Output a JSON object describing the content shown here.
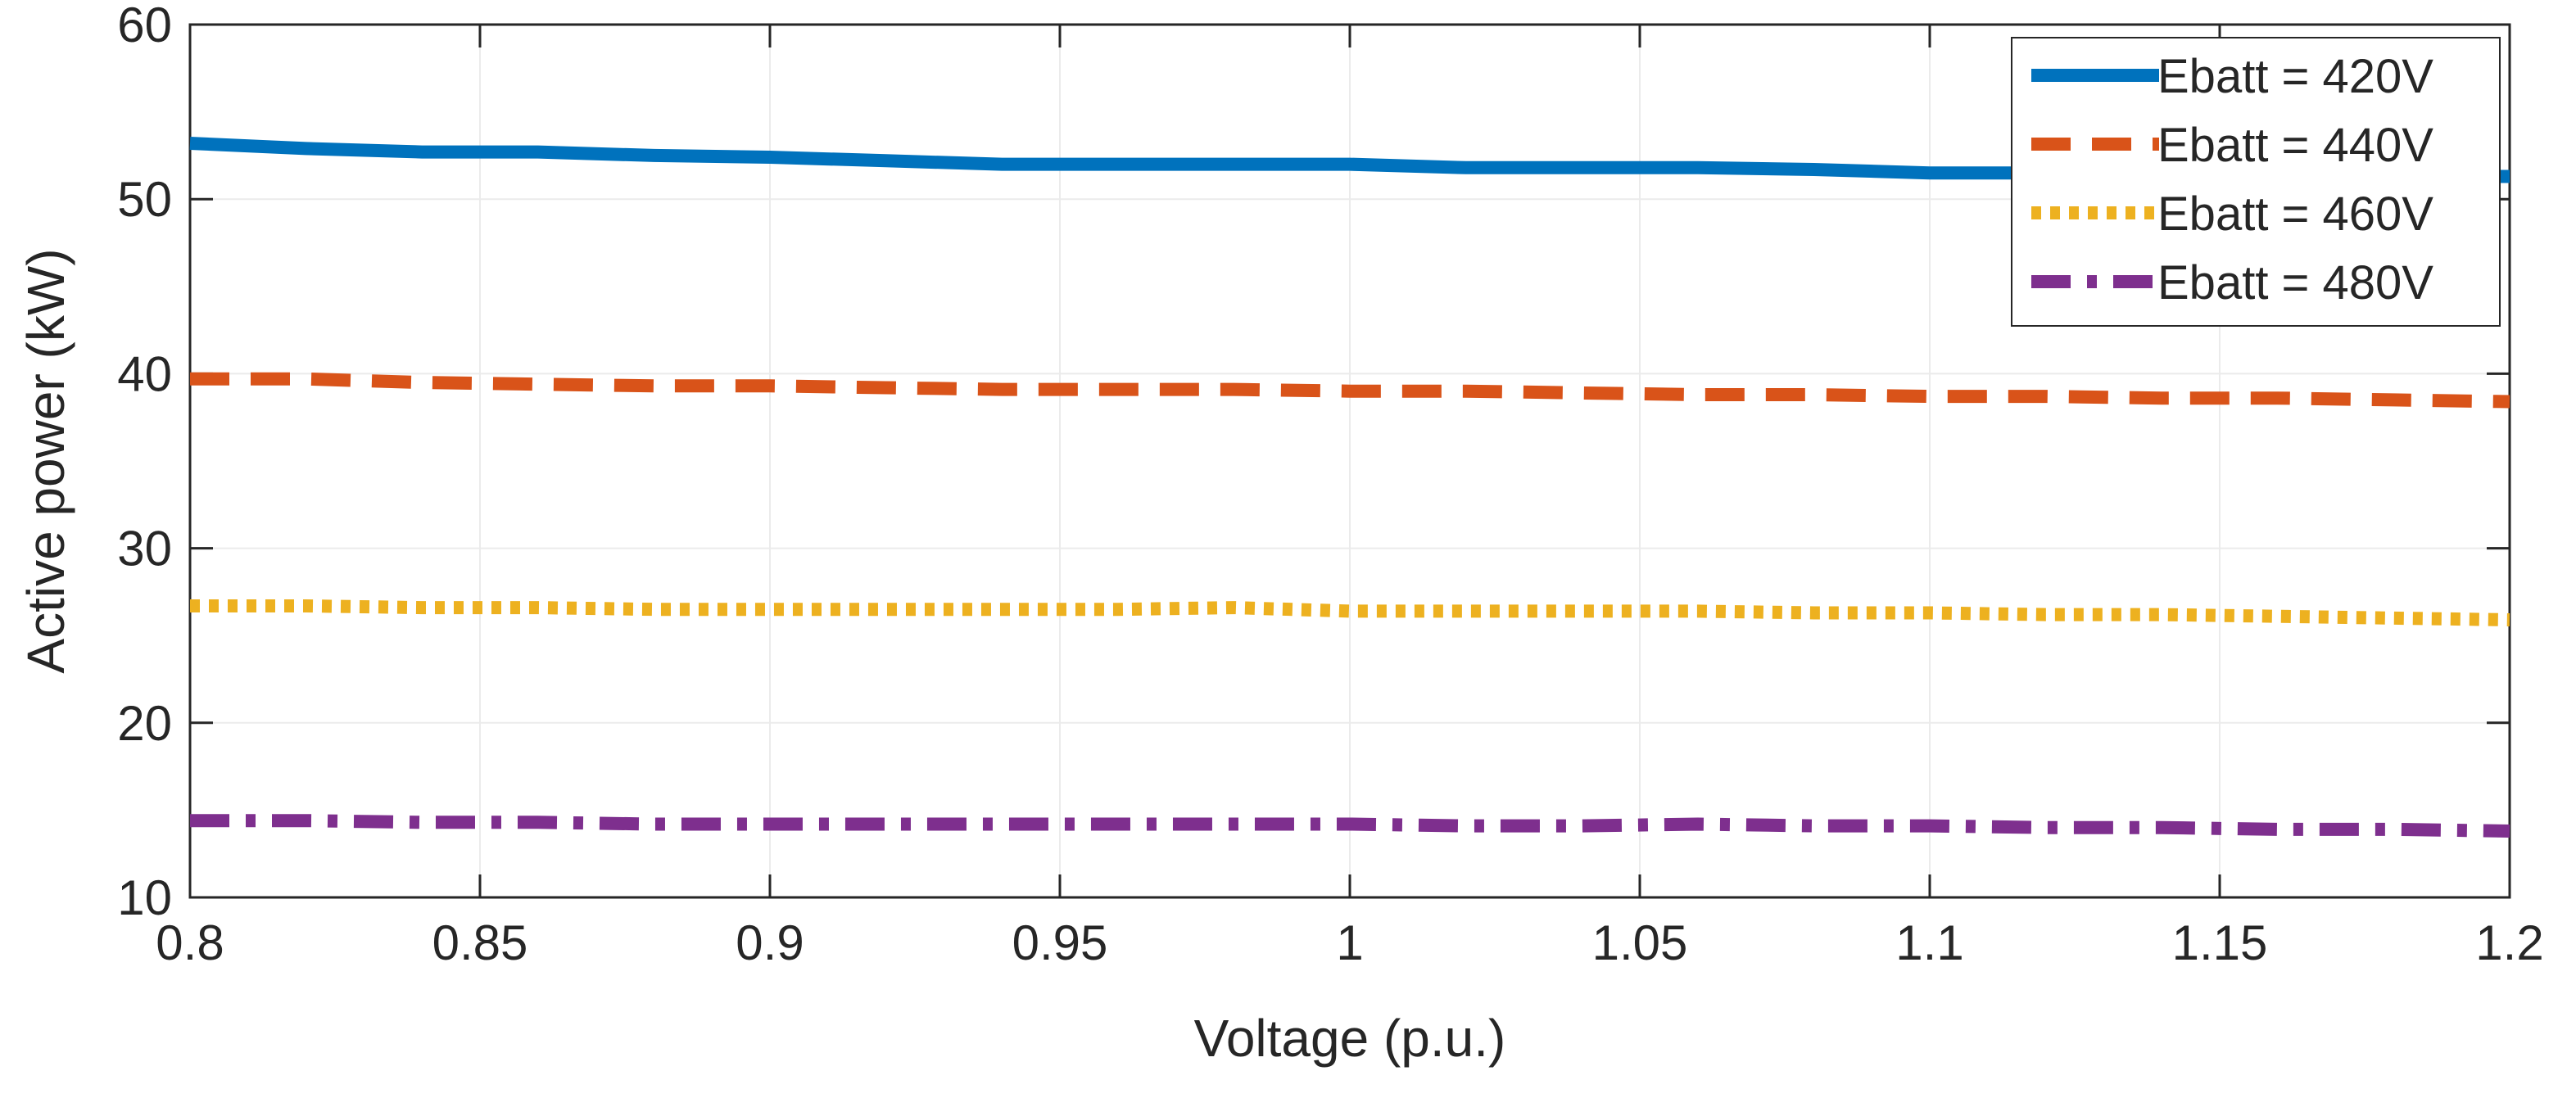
{
  "chart_data": {
    "type": "line",
    "title": "",
    "xlabel": "Voltage (p.u.)",
    "ylabel": "Active power (kW)",
    "xlim": [
      0.8,
      1.2
    ],
    "ylim": [
      10,
      60
    ],
    "xticks": [
      0.8,
      0.85,
      0.9,
      0.95,
      1.0,
      1.05,
      1.1,
      1.15,
      1.2
    ],
    "xtick_labels": [
      "0.8",
      "0.85",
      "0.9",
      "0.95",
      "1",
      "1.05",
      "1.1",
      "1.15",
      "1.2"
    ],
    "yticks": [
      10,
      20,
      30,
      40,
      50,
      60
    ],
    "ytick_labels": [
      "10",
      "20",
      "30",
      "40",
      "50",
      "60"
    ],
    "grid": true,
    "legend_position": "top-right",
    "x": [
      0.8,
      0.82,
      0.84,
      0.86,
      0.88,
      0.9,
      0.92,
      0.94,
      0.96,
      0.98,
      1.0,
      1.02,
      1.04,
      1.06,
      1.08,
      1.1,
      1.12,
      1.14,
      1.16,
      1.18,
      1.2
    ],
    "series": [
      {
        "name": "Ebatt = 420V",
        "color": "#0072BD",
        "style": "solid",
        "values": [
          53.2,
          52.9,
          52.7,
          52.7,
          52.5,
          52.4,
          52.2,
          52.0,
          52.0,
          52.0,
          52.0,
          51.8,
          51.8,
          51.8,
          51.7,
          51.5,
          51.5,
          51.4,
          51.4,
          51.3,
          51.3
        ]
      },
      {
        "name": "Ebatt = 440V",
        "color": "#D95319",
        "style": "dashed",
        "values": [
          39.7,
          39.7,
          39.5,
          39.4,
          39.3,
          39.3,
          39.2,
          39.1,
          39.1,
          39.1,
          39.0,
          39.0,
          38.9,
          38.8,
          38.8,
          38.7,
          38.7,
          38.6,
          38.6,
          38.5,
          38.4
        ]
      },
      {
        "name": "Ebatt = 460V",
        "color": "#EDB120",
        "style": "dotted",
        "values": [
          26.7,
          26.7,
          26.6,
          26.6,
          26.5,
          26.5,
          26.5,
          26.5,
          26.5,
          26.6,
          26.4,
          26.4,
          26.4,
          26.4,
          26.3,
          26.3,
          26.2,
          26.2,
          26.1,
          26.0,
          25.9
        ]
      },
      {
        "name": "Ebatt = 480V",
        "color": "#7E2F8E",
        "style": "dashdot",
        "values": [
          14.4,
          14.4,
          14.3,
          14.3,
          14.2,
          14.2,
          14.2,
          14.2,
          14.2,
          14.2,
          14.2,
          14.1,
          14.1,
          14.2,
          14.1,
          14.1,
          14.0,
          14.0,
          13.9,
          13.9,
          13.8
        ]
      }
    ]
  }
}
